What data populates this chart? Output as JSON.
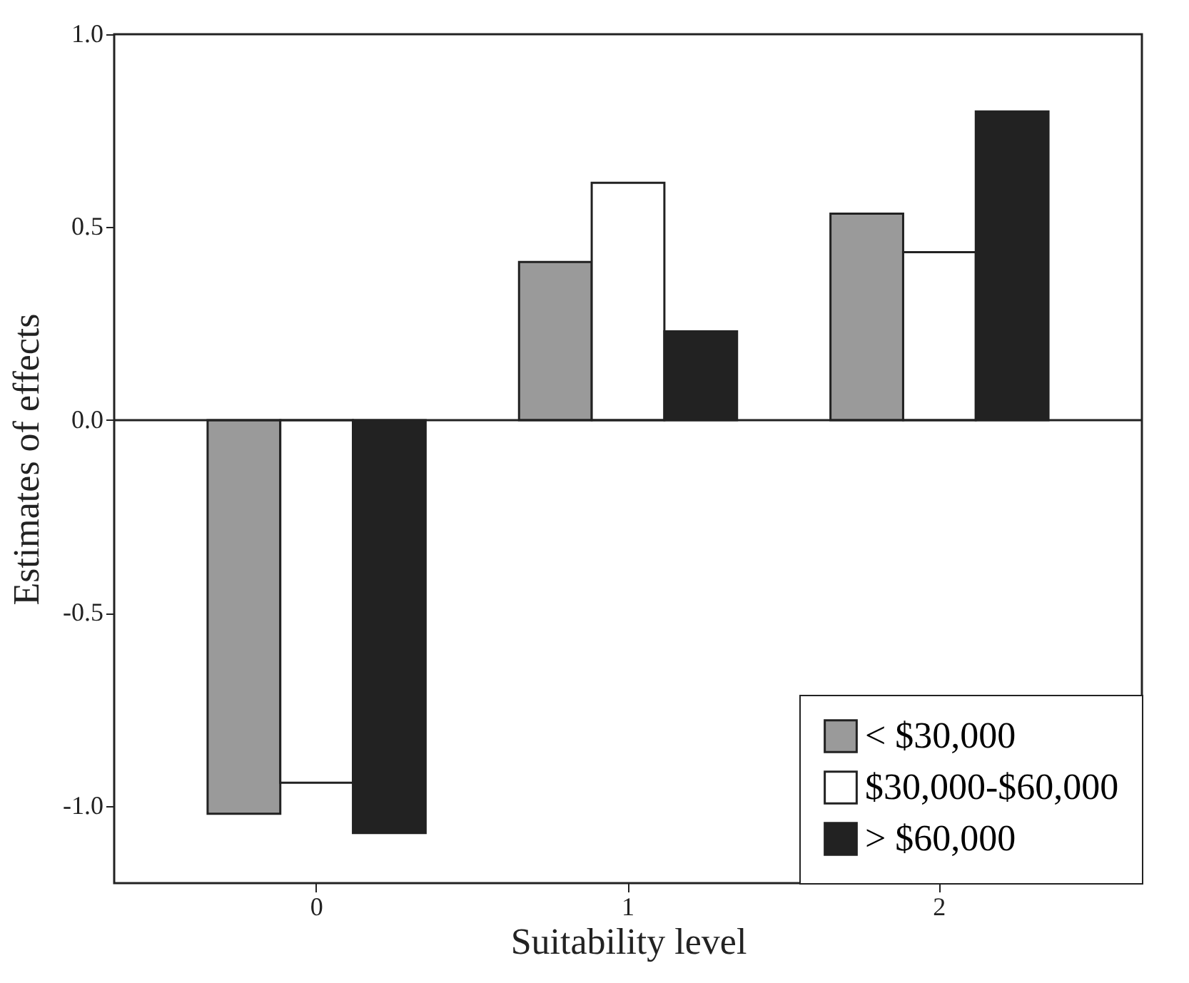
{
  "chart_data": {
    "type": "bar",
    "xlabel": "Suitability level",
    "ylabel": "Estimates of effects",
    "categories": [
      "0",
      "1",
      "2"
    ],
    "series": [
      {
        "name": "< $30,000",
        "color": "#9a9a9a",
        "values": [
          -1.02,
          0.41,
          0.535
        ]
      },
      {
        "name": "$30,000-$60,000",
        "color": "#ffffff",
        "values": [
          -0.94,
          0.615,
          0.435
        ]
      },
      {
        "name": "> $60,000",
        "color": "#222222",
        "values": [
          -1.07,
          0.23,
          0.8
        ]
      }
    ],
    "ylim": [
      -1.2,
      1.0
    ],
    "yticks": [
      {
        "value": -1,
        "label": "-1.0"
      },
      {
        "value": -0.5,
        "label": "-0.5"
      },
      {
        "value": 0,
        "label": "0.0"
      },
      {
        "value": 0.5,
        "label": "0.5"
      },
      {
        "value": 1,
        "label": "1.0"
      }
    ],
    "ref_lines": [
      {
        "axis": "y",
        "value": 0
      }
    ],
    "legend": "bottom right",
    "grid": false
  }
}
